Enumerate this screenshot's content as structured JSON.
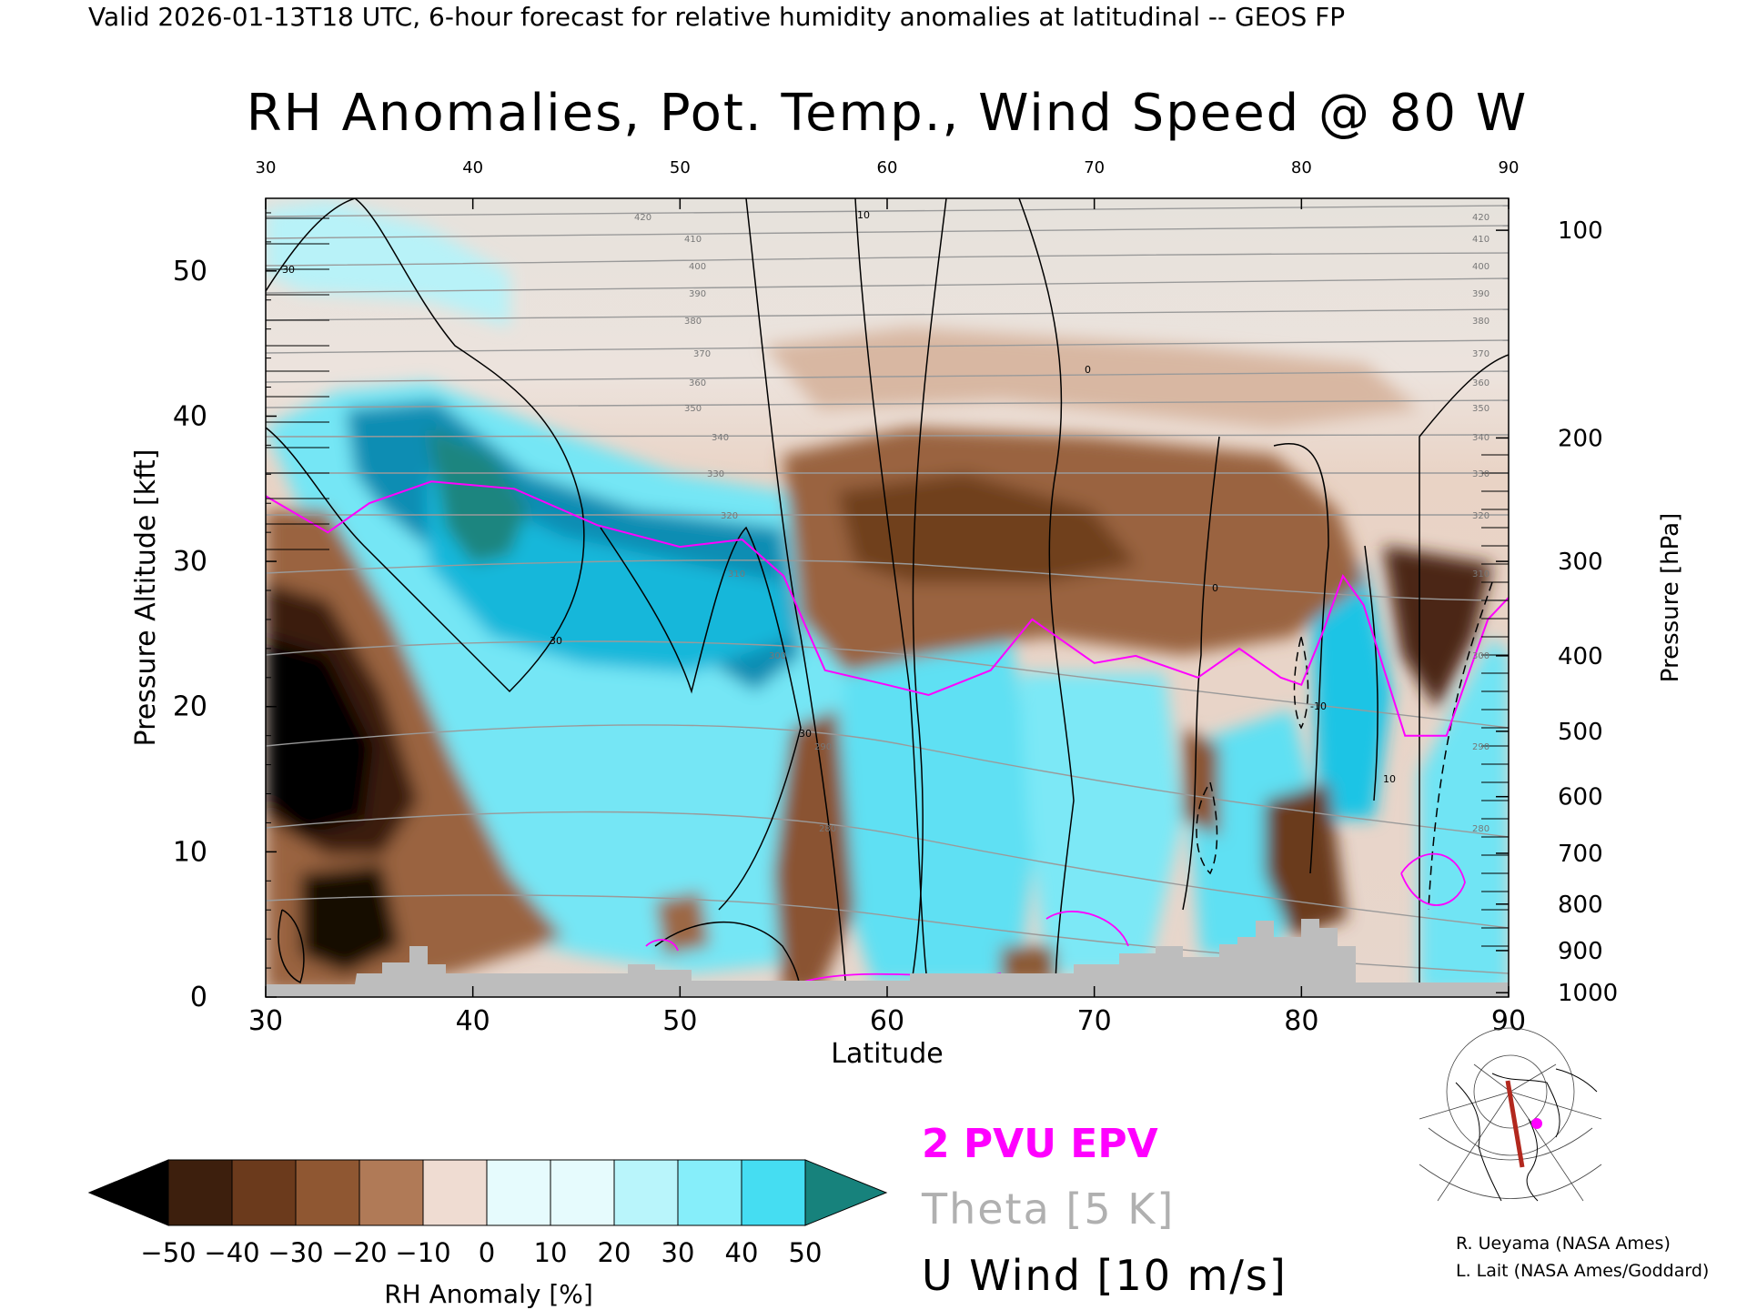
{
  "header": {
    "valid_line": "Valid 2026-01-13T18 UTC, 6-hour forecast for relative humidity anomalies at latitudinal -- GEOS FP"
  },
  "chart_data": {
    "type": "heatmap",
    "title": "RH Anomalies, Pot. Temp., Wind Speed @ 80 W",
    "xlabel": "Latitude",
    "ylabel": "Pressure Altitude [kft]",
    "ylabel_right": "Pressure [hPa]",
    "xlim": [
      30,
      90
    ],
    "ylim": [
      0,
      55
    ],
    "x_ticks": [
      30,
      40,
      50,
      60,
      70,
      80,
      90
    ],
    "y_ticks": [
      0,
      10,
      20,
      30,
      40,
      50
    ],
    "pressure_ticks": [
      {
        "hpa": 100,
        "kft": 52.8
      },
      {
        "hpa": 200,
        "kft": 38.5
      },
      {
        "hpa": 300,
        "kft": 30.0
      },
      {
        "hpa": 400,
        "kft": 23.5
      },
      {
        "hpa": 500,
        "kft": 18.3
      },
      {
        "hpa": 600,
        "kft": 13.8
      },
      {
        "hpa": 700,
        "kft": 9.9
      },
      {
        "hpa": 800,
        "kft": 6.4
      },
      {
        "hpa": 900,
        "kft": 3.2
      },
      {
        "hpa": 1000,
        "kft": 0.3
      }
    ],
    "colorbar": {
      "label": "RH Anomaly [%]",
      "ticks": [
        -50,
        -40,
        -30,
        -20,
        -10,
        0,
        10,
        20,
        30,
        40,
        50
      ],
      "colors": [
        "#000000",
        "#3d1f0d",
        "#6b3a1c",
        "#8f5732",
        "#b07a57",
        "#cfa286",
        "#efdcd2",
        "#e6fbfd",
        "#b9f5fb",
        "#86eefa",
        "#45ddf2",
        "#13bde0",
        "#0b8fb2",
        "#17827c"
      ]
    },
    "legend": [
      {
        "label": "2 PVU EPV",
        "color": "#ff00ff"
      },
      {
        "label": "Theta [5 K]",
        "color": "#b0b0b0"
      },
      {
        "label": "U Wind [10 m/s]",
        "color": "#000000"
      }
    ],
    "theta_labels": [
      420,
      410,
      400,
      390,
      380,
      370,
      360,
      350,
      340,
      330,
      320,
      310,
      300,
      290,
      280
    ],
    "wind_labels": [
      "30",
      "10",
      "0",
      "-10"
    ],
    "epv_2pvu_line": [
      [
        30,
        34.5
      ],
      [
        33,
        32
      ],
      [
        35,
        34
      ],
      [
        38,
        35.5
      ],
      [
        42,
        35
      ],
      [
        46,
        32.5
      ],
      [
        50,
        31
      ],
      [
        53,
        31.5
      ],
      [
        55,
        29
      ],
      [
        57,
        22.5
      ],
      [
        60,
        21.5
      ],
      [
        62,
        20.8
      ],
      [
        65,
        22.5
      ],
      [
        67,
        26
      ],
      [
        70,
        23
      ],
      [
        72,
        23.5
      ],
      [
        75,
        22
      ],
      [
        77,
        24
      ],
      [
        79,
        22
      ],
      [
        80,
        21.5
      ],
      [
        81,
        25
      ],
      [
        82,
        29
      ],
      [
        83,
        27
      ],
      [
        85,
        18
      ],
      [
        87,
        18
      ],
      [
        89,
        26
      ],
      [
        90,
        27.5
      ]
    ],
    "inset_map": {
      "credits": [
        "R. Ueyama (NASA Ames)",
        "L. Lait (NASA Ames/Goddard)"
      ]
    }
  }
}
